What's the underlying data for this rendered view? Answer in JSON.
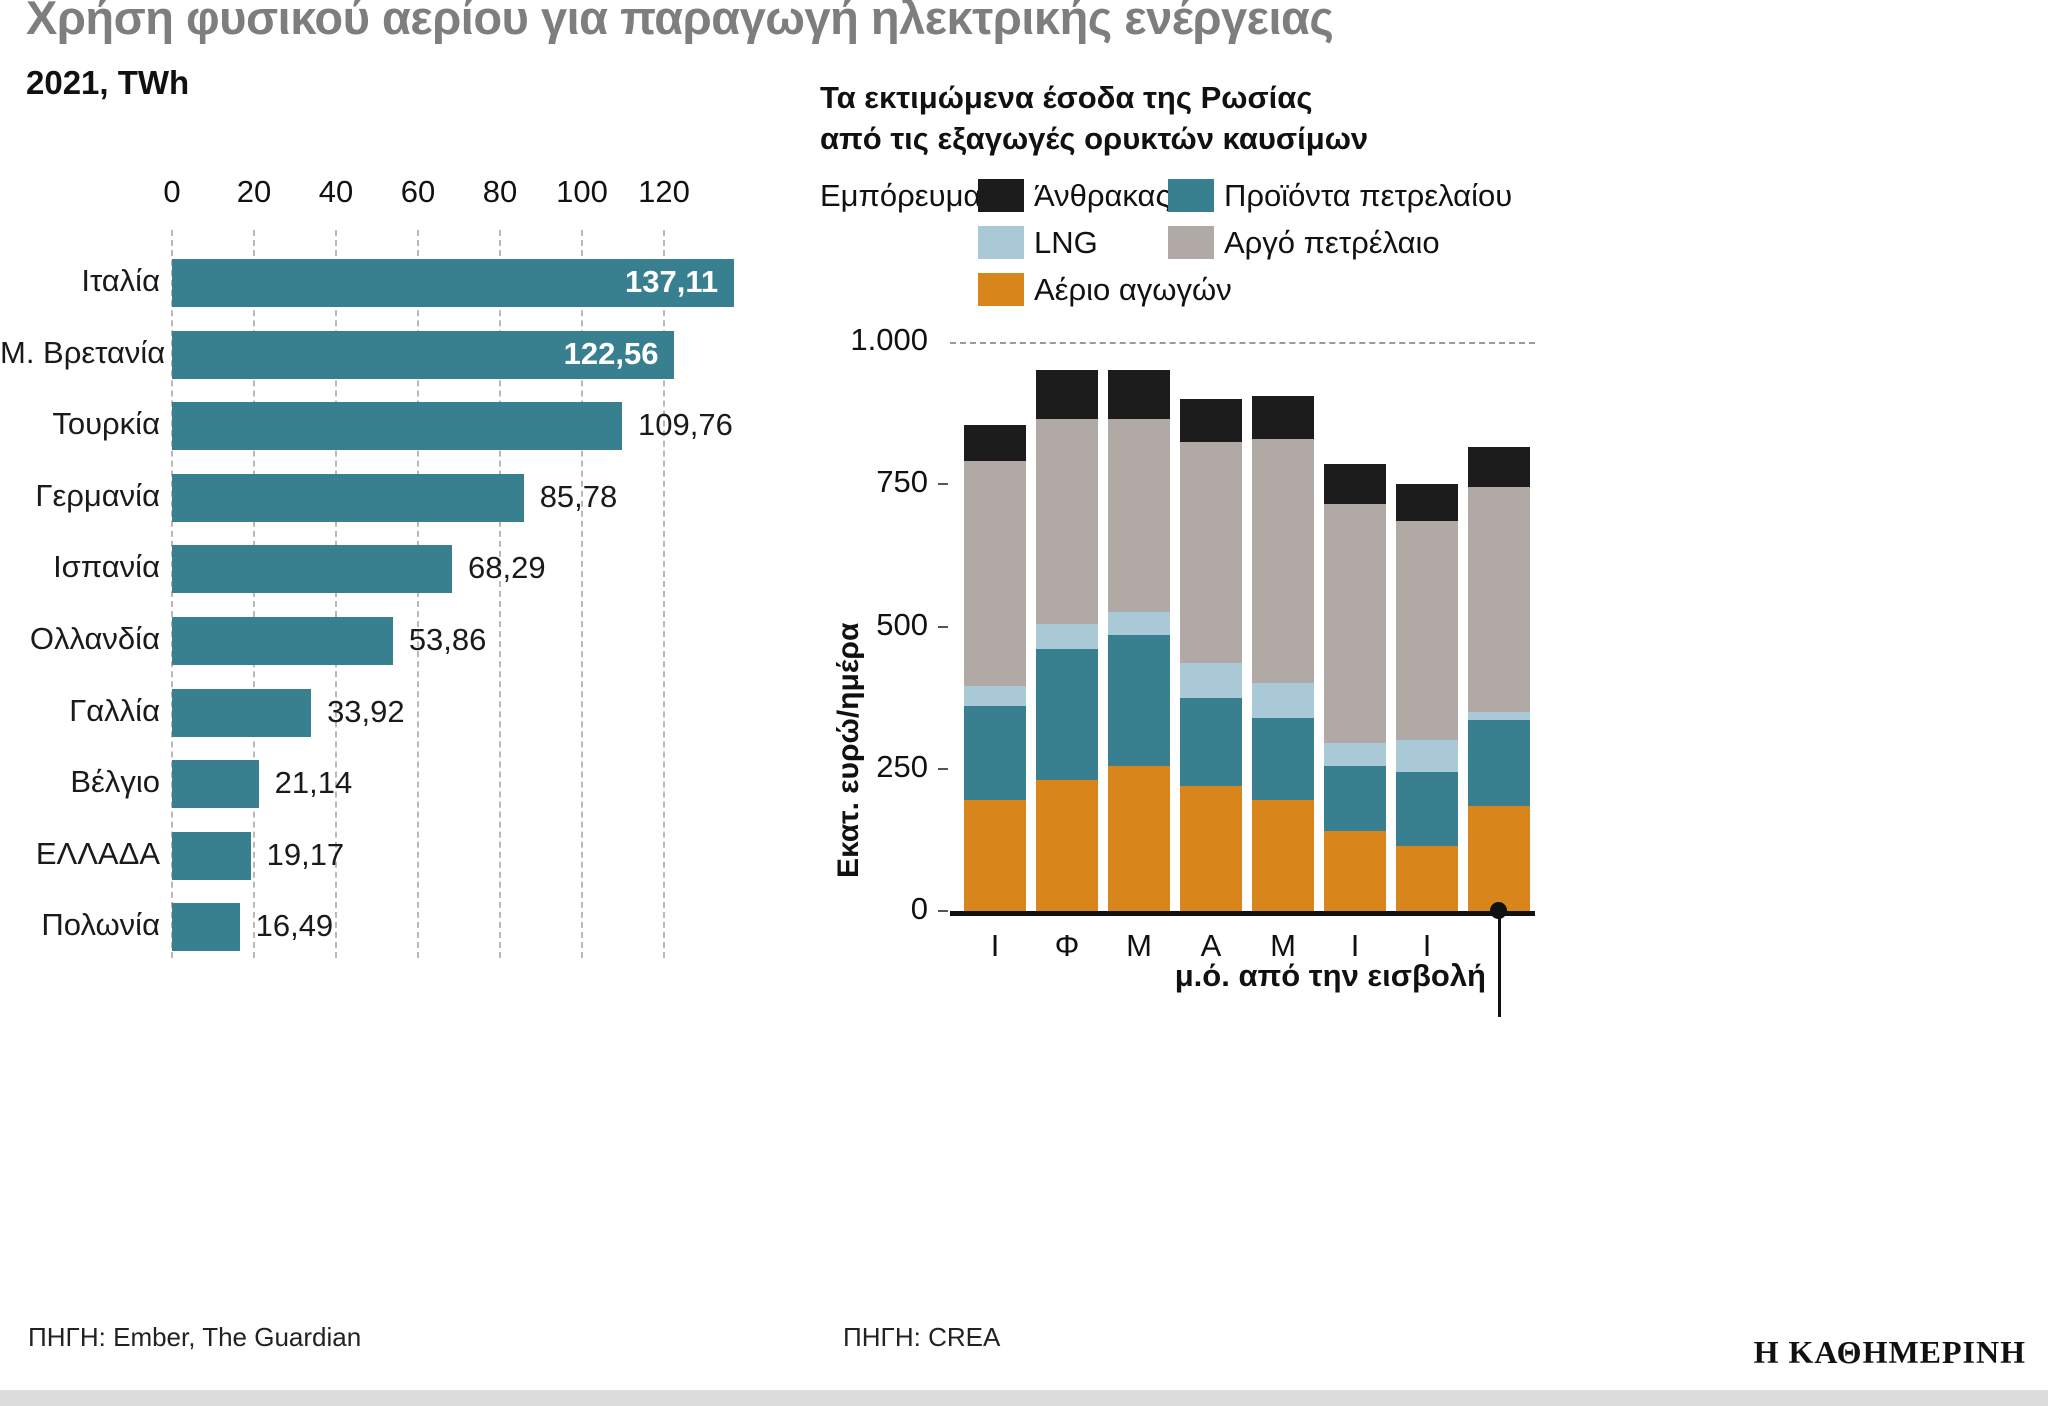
{
  "page": {
    "source_left": "ΠΗΓΗ: Ember, The Guardian",
    "source_right": "ΠΗΓΗ: CREA",
    "logo": "Η ΚΑΘΗΜΕΡΙΝΗ"
  },
  "chart_data": [
    {
      "type": "bar",
      "orientation": "horizontal",
      "title": "Χρήση φυσικού αερίου για παραγωγή ηλεκτρικής ενέργειας",
      "subtitle": "2021, TWh",
      "bar_color": "#38808F",
      "categories": [
        "Ιταλία",
        "Μ. Βρετανία",
        "Τουρκία",
        "Γερμανία",
        "Ισπανία",
        "Ολλανδία",
        "Γαλλία",
        "Βέλγιο",
        "ΕΛΛΑΔΑ",
        "Πολωνία"
      ],
      "values": [
        137.11,
        122.56,
        109.76,
        85.78,
        68.29,
        53.86,
        33.92,
        21.14,
        19.17,
        16.49
      ],
      "value_labels": [
        "137,11",
        "122,56",
        "109,76",
        "85,78",
        "68,29",
        "53,86",
        "33,92",
        "21,14",
        "19,17",
        "16,49"
      ],
      "x_ticks": [
        0,
        20,
        40,
        60,
        80,
        100,
        120
      ],
      "xlim": [
        0,
        140
      ],
      "grid": "dashed-vertical",
      "inside_label_threshold": 120
    },
    {
      "type": "bar",
      "stacked": true,
      "title": "Τα εκτιμώμενα έσοδα της Ρωσίας\nαπό τις εξαγωγές ορυκτών καυσίμων",
      "ylabel": "Εκατ. ευρώ/ημέρα",
      "ylim": [
        0,
        1000
      ],
      "y_ticks": [
        {
          "value": 0,
          "label": "0"
        },
        {
          "value": 250,
          "label": "250"
        },
        {
          "value": 500,
          "label": "500"
        },
        {
          "value": 750,
          "label": "750"
        },
        {
          "value": 1000,
          "label": "1.000"
        }
      ],
      "categories": [
        "Ι",
        "Φ",
        "Μ",
        "Α",
        "Μ",
        "Ι",
        "Ι",
        "μ.ό."
      ],
      "series": [
        {
          "name": "Αέριο αγωγών",
          "color": "#D8861B",
          "values": [
            195,
            230,
            255,
            220,
            195,
            140,
            115,
            185
          ]
        },
        {
          "name": "Προϊόντα πετρελαίου",
          "color": "#38808F",
          "values": [
            165,
            230,
            230,
            155,
            145,
            115,
            130,
            150
          ]
        },
        {
          "name": "LNG",
          "color": "#A9C9D6",
          "values": [
            35,
            45,
            40,
            60,
            60,
            40,
            55,
            15
          ]
        },
        {
          "name": "Αργό πετρέλαιο",
          "color": "#B1A9A5",
          "values": [
            395,
            360,
            340,
            390,
            430,
            420,
            385,
            395
          ]
        },
        {
          "name": "Άνθρακας",
          "color": "#1C1C1C",
          "values": [
            65,
            85,
            85,
            75,
            75,
            70,
            65,
            70
          ]
        }
      ],
      "annotation": "μ.ό. από την εισβολή",
      "grid": "dashed line at 1000 only",
      "legend_position": "top",
      "legend": {
        "title": "Εμπόρευμα",
        "rows": [
          [
            {
              "label": "Άνθρακας",
              "color": "#1C1C1C"
            },
            {
              "label": "Προϊόντα πετρελαίου",
              "color": "#38808F"
            }
          ],
          [
            {
              "label": "LNG",
              "color": "#A9C9D6"
            },
            {
              "label": "Αργό πετρέλαιο",
              "color": "#B1A9A5"
            }
          ],
          [
            {
              "label": "Αέριο αγωγών",
              "color": "#D8861B"
            }
          ]
        ]
      }
    }
  ]
}
